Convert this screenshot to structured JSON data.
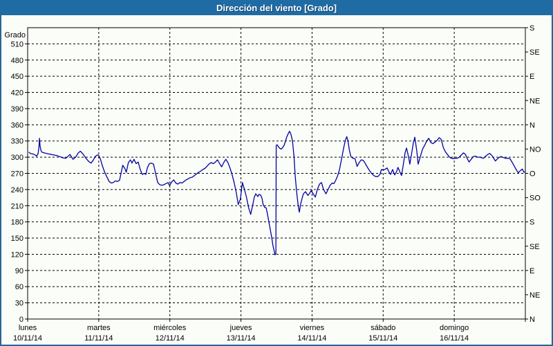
{
  "colors": {
    "title_bar_bg": "#1f6ba3",
    "title_text": "#ffffff",
    "title_shadow": "#0d406f",
    "frame_border": "#2a6496",
    "plot_bg": "#fbfdf9",
    "axis": "#000000",
    "grid": "#000000",
    "line": "#0000a0",
    "label": "#000000"
  },
  "chart_data": {
    "type": "line",
    "title": "Dirección del viento [Grado]",
    "grid": {
      "style": "dashed",
      "h_step": 30,
      "v_step": 24
    },
    "y_axis_left": {
      "label": "Grado",
      "min": 0,
      "max": 540,
      "tick_step": 30,
      "tick_labels": [
        "0",
        "30",
        "60",
        "90",
        "120",
        "150",
        "180",
        "210",
        "240",
        "270",
        "300",
        "330",
        "360",
        "390",
        "420",
        "450",
        "480",
        "510"
      ]
    },
    "y_axis_right": {
      "tick_step": 45,
      "labels_bottom_to_top": [
        "N",
        "NE",
        "E",
        "SE",
        "S",
        "SO",
        "O",
        "NO",
        "N",
        "NE",
        "E",
        "SE",
        "S"
      ]
    },
    "x_axis": {
      "unit": "hours",
      "min": 0,
      "max": 168,
      "day_tick_step": 24,
      "days": [
        {
          "name": "lunes",
          "date": "10/11/14"
        },
        {
          "name": "martes",
          "date": "11/11/14"
        },
        {
          "name": "miércoles",
          "date": "12/11/14"
        },
        {
          "name": "jueves",
          "date": "13/11/14"
        },
        {
          "name": "viernes",
          "date": "14/11/14"
        },
        {
          "name": "sábado",
          "date": "15/11/14"
        },
        {
          "name": "domingo",
          "date": "16/11/14"
        }
      ]
    },
    "series": [
      {
        "name": "direccion-viento",
        "color": "#0000a0",
        "points": [
          [
            0.5,
            309
          ],
          [
            0.9,
            307
          ],
          [
            1.6,
            306
          ],
          [
            2.3,
            305
          ],
          [
            3.0,
            302
          ],
          [
            3.5,
            306
          ],
          [
            3.8,
            318
          ],
          [
            4.0,
            335
          ],
          [
            4.2,
            321
          ],
          [
            4.5,
            312
          ],
          [
            4.9,
            309
          ],
          [
            5.6,
            308
          ],
          [
            6.3,
            307
          ],
          [
            7.0,
            306
          ],
          [
            8.0,
            305
          ],
          [
            8.9,
            304
          ],
          [
            9.9,
            303
          ],
          [
            10.8,
            301
          ],
          [
            11.7,
            299
          ],
          [
            12.9,
            298
          ],
          [
            14.3,
            305
          ],
          [
            15.3,
            296
          ],
          [
            16.2,
            300
          ],
          [
            17.1,
            308
          ],
          [
            17.8,
            311
          ],
          [
            18.8,
            305
          ],
          [
            19.7,
            298
          ],
          [
            20.6,
            292
          ],
          [
            21.4,
            289
          ],
          [
            22.1,
            294
          ],
          [
            22.8,
            301
          ],
          [
            23.5,
            304
          ],
          [
            23.9,
            304
          ],
          [
            24.6,
            296
          ],
          [
            25.3,
            283
          ],
          [
            26.0,
            272
          ],
          [
            26.7,
            264
          ],
          [
            27.5,
            255
          ],
          [
            28.2,
            252
          ],
          [
            28.9,
            253
          ],
          [
            29.6,
            256
          ],
          [
            30.3,
            255
          ],
          [
            31.0,
            257
          ],
          [
            31.7,
            275
          ],
          [
            32.1,
            285
          ],
          [
            32.8,
            279
          ],
          [
            33.3,
            272
          ],
          [
            34.0,
            290
          ],
          [
            34.7,
            295
          ],
          [
            35.2,
            289
          ],
          [
            35.9,
            296
          ],
          [
            36.6,
            288
          ],
          [
            37.3,
            291
          ],
          [
            38.0,
            277
          ],
          [
            38.7,
            268
          ],
          [
            39.4,
            270
          ],
          [
            39.9,
            268
          ],
          [
            40.4,
            280
          ],
          [
            41.1,
            288
          ],
          [
            41.8,
            289
          ],
          [
            42.5,
            287
          ],
          [
            43.2,
            270
          ],
          [
            43.9,
            253
          ],
          [
            44.6,
            249
          ],
          [
            45.3,
            248
          ],
          [
            46.0,
            249
          ],
          [
            46.7,
            251
          ],
          [
            47.4,
            253
          ],
          [
            47.9,
            247
          ],
          [
            48.6,
            254
          ],
          [
            49.3,
            258
          ],
          [
            50.0,
            252
          ],
          [
            50.7,
            250
          ],
          [
            51.4,
            253
          ],
          [
            52.1,
            252
          ],
          [
            52.8,
            255
          ],
          [
            53.5,
            258
          ],
          [
            54.2,
            260
          ],
          [
            54.9,
            262
          ],
          [
            55.6,
            263
          ],
          [
            56.3,
            266
          ],
          [
            57.0,
            269
          ],
          [
            57.7,
            272
          ],
          [
            58.4,
            274
          ],
          [
            59.1,
            277
          ],
          [
            59.8,
            279
          ],
          [
            60.5,
            283
          ],
          [
            61.2,
            287
          ],
          [
            61.9,
            290
          ],
          [
            62.7,
            288
          ],
          [
            63.4,
            291
          ],
          [
            64.1,
            295
          ],
          [
            64.8,
            288
          ],
          [
            65.5,
            282
          ],
          [
            66.2,
            290
          ],
          [
            66.9,
            296
          ],
          [
            67.6,
            290
          ],
          [
            68.3,
            280
          ],
          [
            69.0,
            268
          ],
          [
            69.7,
            253
          ],
          [
            70.4,
            235
          ],
          [
            71.1,
            212
          ],
          [
            71.8,
            222
          ],
          [
            72.5,
            253
          ],
          [
            73.2,
            240
          ],
          [
            73.9,
            225
          ],
          [
            74.6,
            206
          ],
          [
            75.3,
            194
          ],
          [
            76.0,
            212
          ],
          [
            76.5,
            226
          ],
          [
            77.0,
            232
          ],
          [
            77.7,
            227
          ],
          [
            78.1,
            231
          ],
          [
            78.6,
            230
          ],
          [
            79.1,
            224
          ],
          [
            79.5,
            212
          ],
          [
            80.0,
            207
          ],
          [
            80.5,
            206
          ],
          [
            80.9,
            196
          ],
          [
            81.7,
            172
          ],
          [
            82.4,
            151
          ],
          [
            82.8,
            136
          ],
          [
            83.3,
            124
          ],
          [
            83.5,
            119
          ],
          [
            83.8,
            121
          ],
          [
            83.9,
            322
          ],
          [
            84.2,
            323
          ],
          [
            84.7,
            319
          ],
          [
            85.2,
            316
          ],
          [
            85.6,
            315
          ],
          [
            86.1,
            318
          ],
          [
            86.6,
            322
          ],
          [
            87.1,
            331
          ],
          [
            87.5,
            338
          ],
          [
            88.0,
            344
          ],
          [
            88.4,
            348
          ],
          [
            88.9,
            342
          ],
          [
            89.4,
            330
          ],
          [
            89.9,
            302
          ],
          [
            90.3,
            266
          ],
          [
            90.8,
            236
          ],
          [
            91.3,
            211
          ],
          [
            91.7,
            198
          ],
          [
            92.2,
            214
          ],
          [
            92.7,
            225
          ],
          [
            93.1,
            232
          ],
          [
            93.8,
            236
          ],
          [
            94.6,
            229
          ],
          [
            95.3,
            234
          ],
          [
            95.7,
            238
          ],
          [
            96.4,
            232
          ],
          [
            97.1,
            226
          ],
          [
            97.8,
            240
          ],
          [
            98.5,
            250
          ],
          [
            99.2,
            253
          ],
          [
            99.9,
            240
          ],
          [
            100.7,
            232
          ],
          [
            101.4,
            240
          ],
          [
            102.1,
            248
          ],
          [
            102.8,
            252
          ],
          [
            103.4,
            251
          ],
          [
            103.9,
            256
          ],
          [
            104.6,
            265
          ],
          [
            105.3,
            278
          ],
          [
            106.0,
            298
          ],
          [
            106.7,
            318
          ],
          [
            107.2,
            330
          ],
          [
            107.7,
            338
          ],
          [
            108.1,
            331
          ],
          [
            108.6,
            313
          ],
          [
            109.1,
            301
          ],
          [
            109.8,
            298
          ],
          [
            110.5,
            297
          ],
          [
            111.2,
            283
          ],
          [
            111.9,
            290
          ],
          [
            112.6,
            295
          ],
          [
            113.3,
            294
          ],
          [
            114.0,
            288
          ],
          [
            114.7,
            281
          ],
          [
            115.4,
            275
          ],
          [
            116.1,
            270
          ],
          [
            116.8,
            266
          ],
          [
            117.5,
            264
          ],
          [
            118.2,
            264
          ],
          [
            118.9,
            268
          ],
          [
            119.4,
            277
          ],
          [
            120.1,
            276
          ],
          [
            120.8,
            278
          ],
          [
            121.3,
            280
          ],
          [
            122.0,
            272
          ],
          [
            122.5,
            268
          ],
          [
            123.2,
            277
          ],
          [
            123.9,
            267
          ],
          [
            124.6,
            274
          ],
          [
            125.0,
            281
          ],
          [
            125.8,
            271
          ],
          [
            126.2,
            266
          ],
          [
            126.9,
            290
          ],
          [
            127.4,
            308
          ],
          [
            127.9,
            317
          ],
          [
            128.6,
            300
          ],
          [
            129.0,
            287
          ],
          [
            129.7,
            310
          ],
          [
            130.2,
            327
          ],
          [
            130.7,
            337
          ],
          [
            131.4,
            310
          ],
          [
            131.8,
            287
          ],
          [
            132.5,
            300
          ],
          [
            133.3,
            315
          ],
          [
            134.0,
            322
          ],
          [
            134.7,
            330
          ],
          [
            135.4,
            335
          ],
          [
            136.1,
            327
          ],
          [
            136.8,
            325
          ],
          [
            137.5,
            328
          ],
          [
            138.2,
            331
          ],
          [
            138.9,
            336
          ],
          [
            139.6,
            333
          ],
          [
            140.3,
            318
          ],
          [
            141.0,
            310
          ],
          [
            141.7,
            305
          ],
          [
            142.6,
            299
          ],
          [
            143.6,
            297
          ],
          [
            144.3,
            298
          ],
          [
            145.0,
            298
          ],
          [
            145.7,
            300
          ],
          [
            146.4,
            304
          ],
          [
            147.1,
            308
          ],
          [
            147.8,
            305
          ],
          [
            148.5,
            296
          ],
          [
            149.0,
            291
          ],
          [
            149.7,
            296
          ],
          [
            150.4,
            301
          ],
          [
            151.1,
            302
          ],
          [
            151.8,
            300
          ],
          [
            152.5,
            300
          ],
          [
            153.2,
            299
          ],
          [
            153.9,
            298
          ],
          [
            154.6,
            302
          ],
          [
            155.3,
            305
          ],
          [
            156.0,
            307
          ],
          [
            156.7,
            303
          ],
          [
            157.4,
            297
          ],
          [
            157.9,
            293
          ],
          [
            158.6,
            297
          ],
          [
            159.3,
            300
          ],
          [
            160.0,
            301
          ],
          [
            160.7,
            299
          ],
          [
            161.4,
            298
          ],
          [
            162.1,
            298
          ],
          [
            162.8,
            297
          ],
          [
            163.5,
            291
          ],
          [
            164.2,
            284
          ],
          [
            164.9,
            277
          ],
          [
            165.6,
            271
          ],
          [
            166.3,
            275
          ],
          [
            167.0,
            278
          ],
          [
            167.5,
            272
          ],
          [
            168.0,
            273
          ]
        ]
      }
    ]
  }
}
